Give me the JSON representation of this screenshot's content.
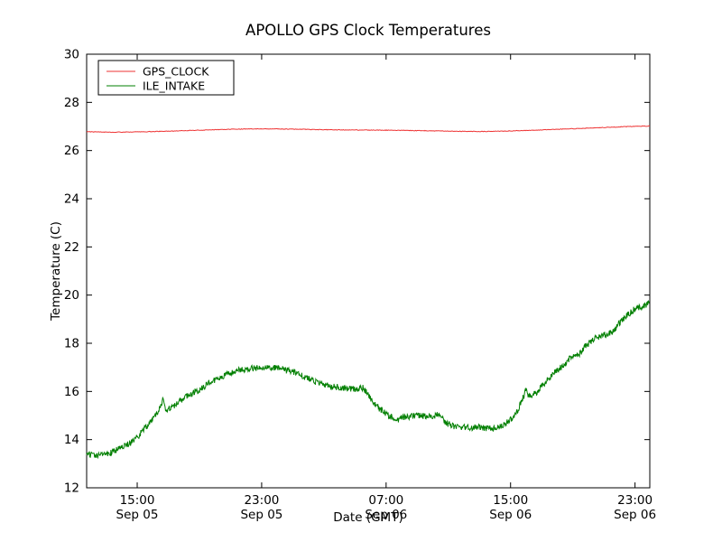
{
  "chart_data": {
    "type": "line",
    "title": "APOLLO GPS Clock Temperatures",
    "xlabel": "Date (GMT)",
    "ylabel": "Temperature (C)",
    "ylim": [
      12,
      30
    ],
    "ytick_step": 2,
    "xlim_hours": [
      0,
      36.2
    ],
    "grid": false,
    "plot_background": "#ffffff",
    "axes_color": "#000000",
    "legend": {
      "position": "upper left",
      "entries": [
        "GPS_CLOCK",
        "ILE_INTAKE"
      ]
    },
    "xticks": [
      {
        "hours": 3.25,
        "time": "15:00",
        "date": "Sep 05"
      },
      {
        "hours": 11.25,
        "time": "23:00",
        "date": "Sep 05"
      },
      {
        "hours": 19.25,
        "time": "07:00",
        "date": "Sep 06"
      },
      {
        "hours": 27.25,
        "time": "15:00",
        "date": "Sep 06"
      },
      {
        "hours": 35.25,
        "time": "23:00",
        "date": "Sep 06"
      }
    ],
    "series": [
      {
        "name": "GPS_CLOCK",
        "color": "#ee3333",
        "noise": 0.012,
        "sample_step": 0.05,
        "points": [
          [
            0,
            26.78
          ],
          [
            1.5,
            26.76
          ],
          [
            3,
            26.77
          ],
          [
            5,
            26.8
          ],
          [
            7,
            26.84
          ],
          [
            9,
            26.88
          ],
          [
            10.5,
            26.9
          ],
          [
            12,
            26.9
          ],
          [
            14,
            26.88
          ],
          [
            16,
            26.86
          ],
          [
            18,
            26.85
          ],
          [
            20,
            26.84
          ],
          [
            22,
            26.82
          ],
          [
            24,
            26.8
          ],
          [
            25.5,
            26.79
          ],
          [
            27,
            26.81
          ],
          [
            29,
            26.85
          ],
          [
            31,
            26.9
          ],
          [
            33,
            26.95
          ],
          [
            35,
            27.0
          ],
          [
            36.2,
            27.02
          ]
        ]
      },
      {
        "name": "ILE_INTAKE",
        "color": "#007f00",
        "noise": 0.13,
        "sample_step": 0.03,
        "points": [
          [
            0,
            13.4
          ],
          [
            0.8,
            13.35
          ],
          [
            1.5,
            13.45
          ],
          [
            2.2,
            13.65
          ],
          [
            2.8,
            13.85
          ],
          [
            3.25,
            14.1
          ],
          [
            3.8,
            14.5
          ],
          [
            4.3,
            14.9
          ],
          [
            4.7,
            15.3
          ],
          [
            4.95,
            15.75
          ],
          [
            5.05,
            15.25
          ],
          [
            5.5,
            15.35
          ],
          [
            6.0,
            15.6
          ],
          [
            6.6,
            15.85
          ],
          [
            7.2,
            16.05
          ],
          [
            8.0,
            16.4
          ],
          [
            8.8,
            16.65
          ],
          [
            9.6,
            16.85
          ],
          [
            10.4,
            16.95
          ],
          [
            11.2,
            17.0
          ],
          [
            12.0,
            17.0
          ],
          [
            12.6,
            16.95
          ],
          [
            13.4,
            16.8
          ],
          [
            14.2,
            16.55
          ],
          [
            15.0,
            16.3
          ],
          [
            15.8,
            16.2
          ],
          [
            16.6,
            16.15
          ],
          [
            17.4,
            16.1
          ],
          [
            17.8,
            16.15
          ],
          [
            18.2,
            15.75
          ],
          [
            18.8,
            15.3
          ],
          [
            19.4,
            15.0
          ],
          [
            19.75,
            14.9
          ],
          [
            19.85,
            14.8
          ],
          [
            20.5,
            14.95
          ],
          [
            21.3,
            15.0
          ],
          [
            22.1,
            14.95
          ],
          [
            22.7,
            15.05
          ],
          [
            23.1,
            14.7
          ],
          [
            23.6,
            14.55
          ],
          [
            24.5,
            14.5
          ],
          [
            25.4,
            14.5
          ],
          [
            26.0,
            14.45
          ],
          [
            26.6,
            14.55
          ],
          [
            27.2,
            14.8
          ],
          [
            27.7,
            15.2
          ],
          [
            28.1,
            15.8
          ],
          [
            28.3,
            16.15
          ],
          [
            28.4,
            15.8
          ],
          [
            28.9,
            15.95
          ],
          [
            29.5,
            16.4
          ],
          [
            30.1,
            16.8
          ],
          [
            30.7,
            17.1
          ],
          [
            31.1,
            17.4
          ],
          [
            31.6,
            17.5
          ],
          [
            32.1,
            17.9
          ],
          [
            32.7,
            18.2
          ],
          [
            33.3,
            18.35
          ],
          [
            33.8,
            18.45
          ],
          [
            34.2,
            18.8
          ],
          [
            34.7,
            19.15
          ],
          [
            35.3,
            19.45
          ],
          [
            35.8,
            19.55
          ],
          [
            36.0,
            19.6
          ],
          [
            36.2,
            19.7
          ]
        ]
      }
    ]
  }
}
